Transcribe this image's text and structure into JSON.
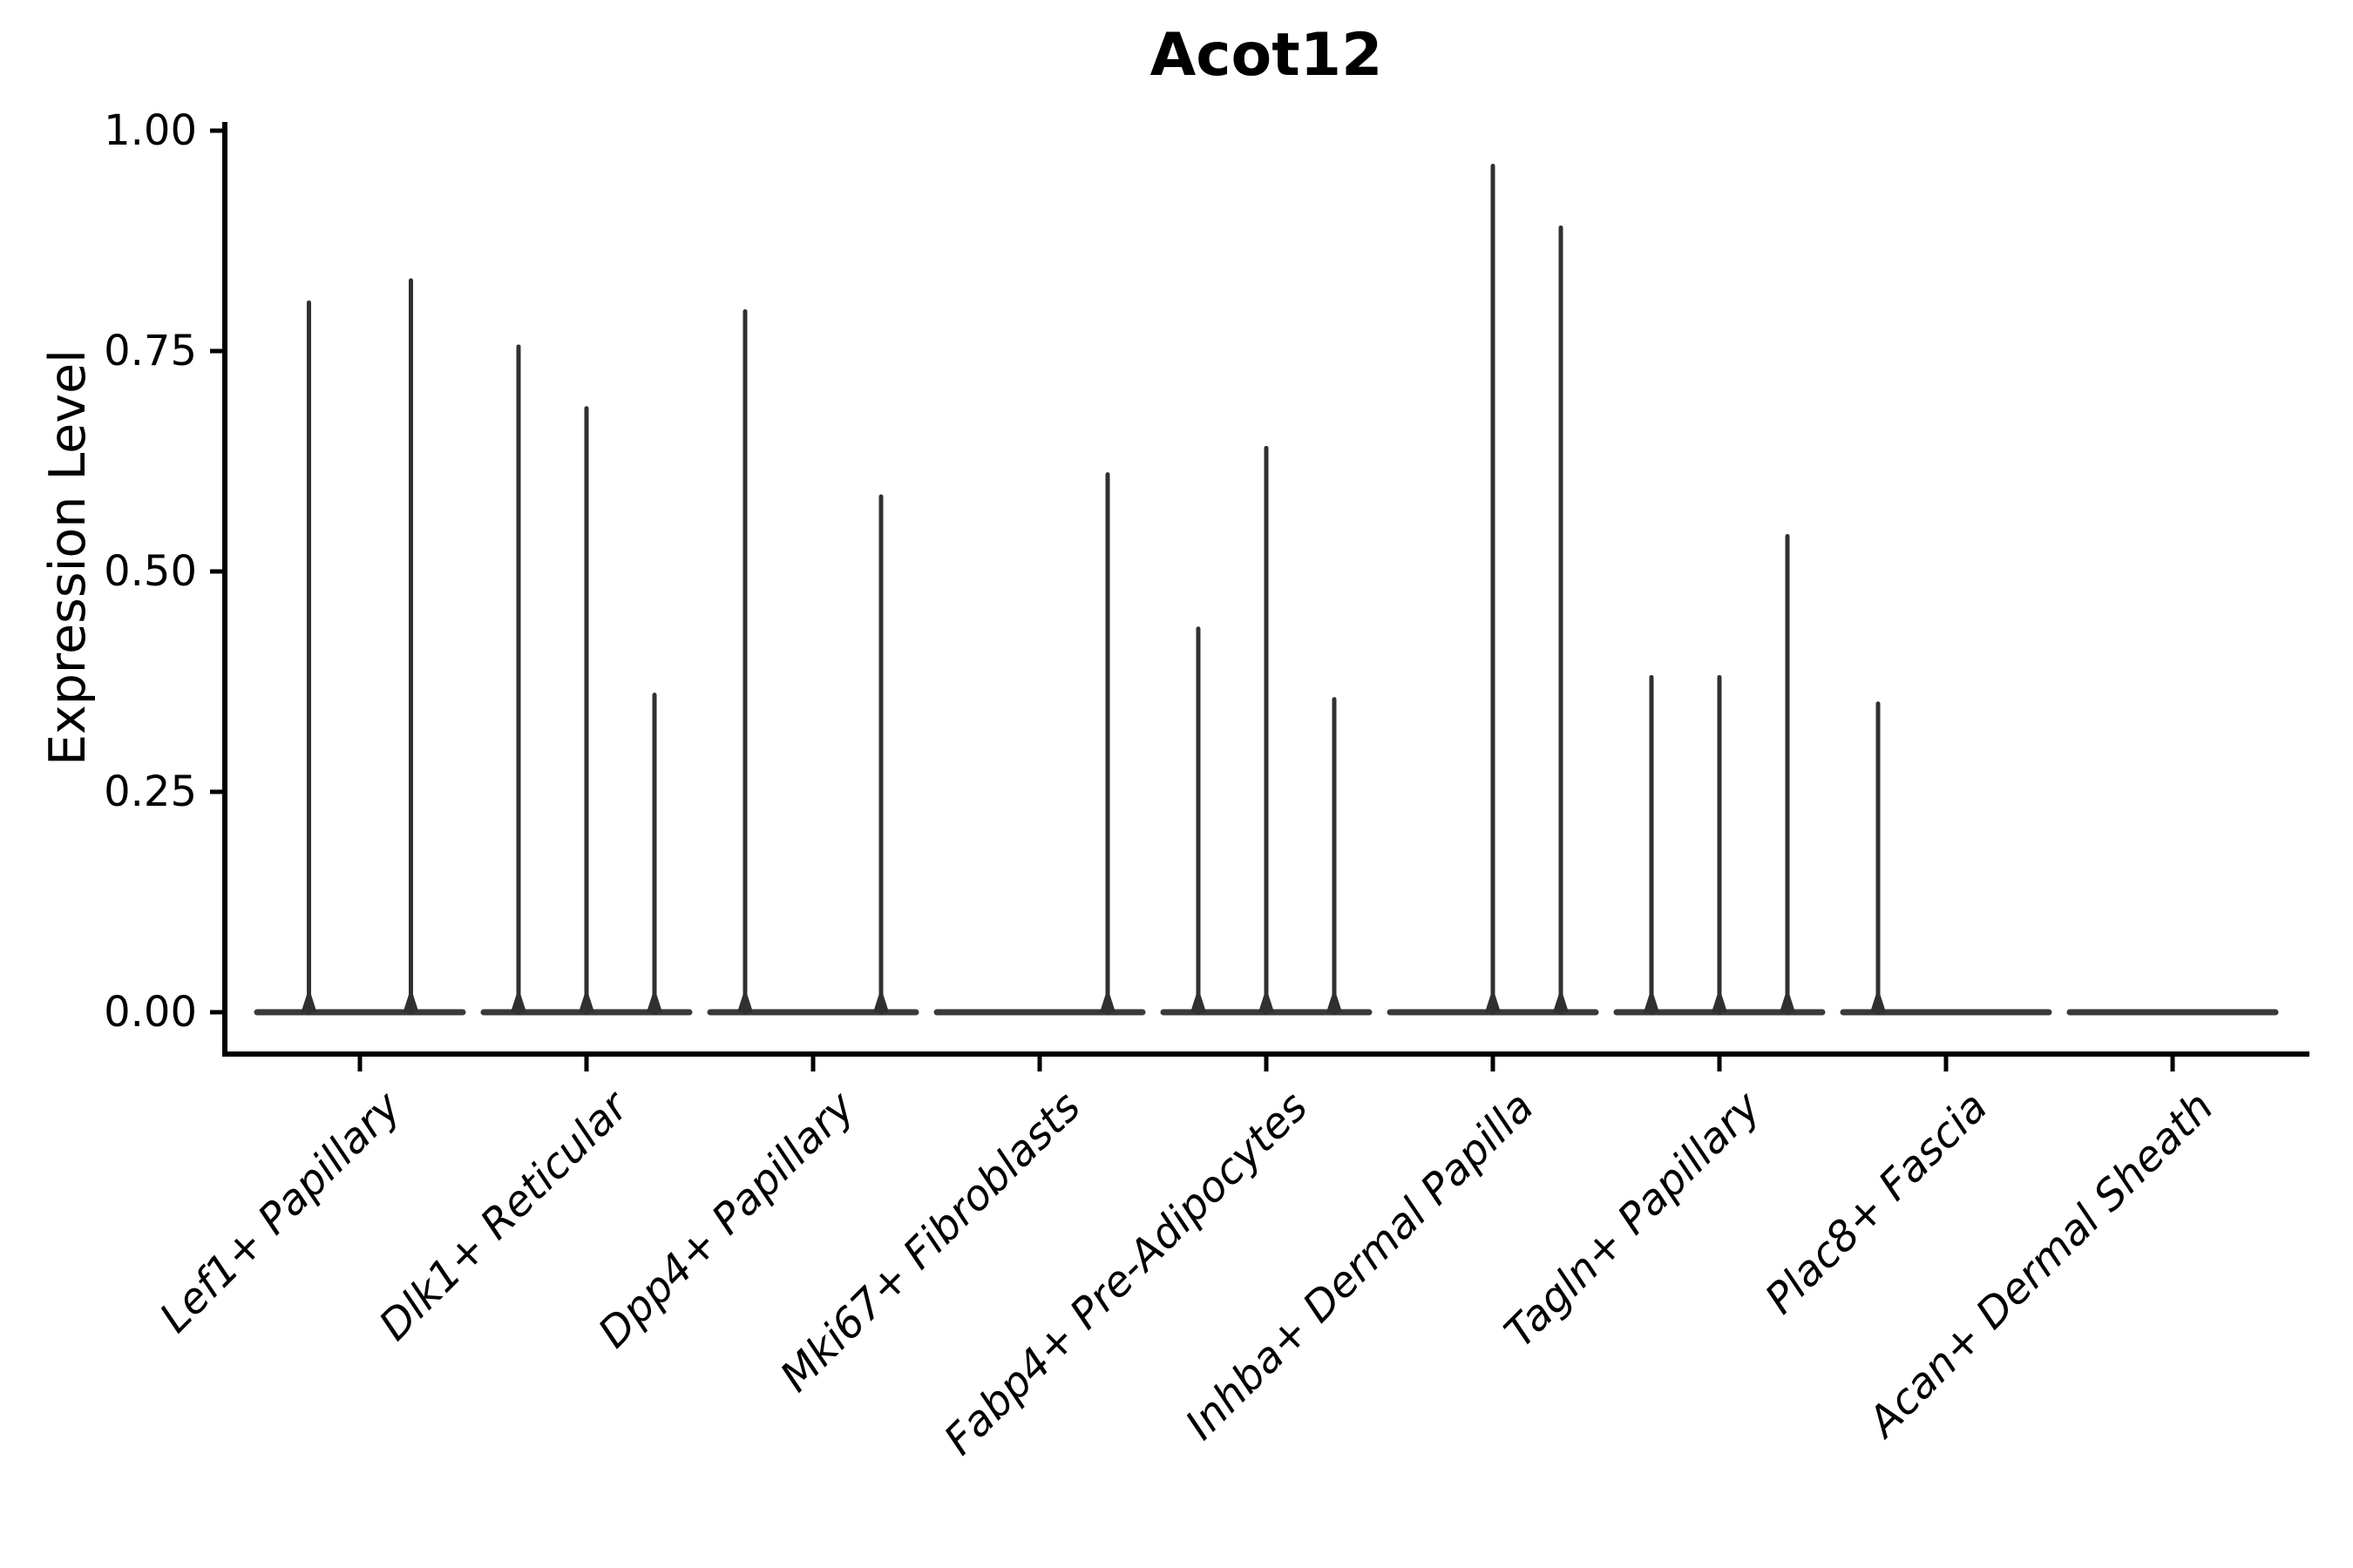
{
  "figure": {
    "title": "Acot12",
    "background_color": "#ffffff"
  },
  "chart_data": {
    "type": "violin",
    "title": "Acot12",
    "ylabel": "Expression Level",
    "xlabel": "",
    "ylim": [
      0,
      1.0
    ],
    "grid": false,
    "legend_position": "none",
    "y_ticks": {
      "values": [
        1.0,
        0.75,
        0.5,
        0.25,
        0.0
      ],
      "labels": [
        "1.00",
        "0.75",
        "0.50",
        "0.25",
        "0.00"
      ]
    },
    "categories": [
      "Lef1+ Papillary",
      "Dlk1+ Reticular",
      "Dpp4+ Papillary",
      "Mki67+ Fibroblasts",
      "Fabp4+ Pre-Adipocytes",
      "Inhba+ Dermal Papilla",
      "Tagln+ Papillary",
      "Plac8+ Fascia",
      "Acan+ Dermal Sheath"
    ],
    "groups": [
      {
        "category": "Lef1+ Papillary",
        "violins": [
          {
            "position": -0.225,
            "peak_expression": 0.805
          },
          {
            "position": 0.225,
            "peak_expression": 0.83
          }
        ]
      },
      {
        "category": "Dlk1+ Reticular",
        "violins": [
          {
            "position": -0.3,
            "peak_expression": 0.755
          },
          {
            "position": 0.0,
            "peak_expression": 0.685
          },
          {
            "position": 0.3,
            "peak_expression": 0.36
          }
        ]
      },
      {
        "category": "Dpp4+ Papillary",
        "violins": [
          {
            "position": -0.3,
            "peak_expression": 0.795
          },
          {
            "position": 0.0,
            "peak_expression": 0.0
          },
          {
            "position": 0.3,
            "peak_expression": 0.585
          }
        ]
      },
      {
        "category": "Mki67+ Fibroblasts",
        "violins": [
          {
            "position": -0.3,
            "peak_expression": 0.0
          },
          {
            "position": 0.0,
            "peak_expression": 0.0
          },
          {
            "position": 0.3,
            "peak_expression": 0.61
          }
        ]
      },
      {
        "category": "Fabp4+ Pre-Adipocytes",
        "violins": [
          {
            "position": -0.3,
            "peak_expression": 0.435
          },
          {
            "position": 0.0,
            "peak_expression": 0.64
          },
          {
            "position": 0.3,
            "peak_expression": 0.355
          }
        ]
      },
      {
        "category": "Inhba+ Dermal Papilla",
        "violins": [
          {
            "position": -0.3,
            "peak_expression": 0.0
          },
          {
            "position": 0.0,
            "peak_expression": 0.96
          },
          {
            "position": 0.3,
            "peak_expression": 0.89
          }
        ]
      },
      {
        "category": "Tagln+ Papillary",
        "violins": [
          {
            "position": -0.3,
            "peak_expression": 0.38
          },
          {
            "position": 0.0,
            "peak_expression": 0.38
          },
          {
            "position": 0.3,
            "peak_expression": 0.54
          }
        ]
      },
      {
        "category": "Plac8+ Fascia",
        "violins": [
          {
            "position": -0.3,
            "peak_expression": 0.35
          },
          {
            "position": 0.0,
            "peak_expression": 0.0
          },
          {
            "position": 0.3,
            "peak_expression": 0.0
          }
        ]
      },
      {
        "category": "Acan+ Dermal Sheath",
        "violins": [
          {
            "position": -0.3,
            "peak_expression": 0.0
          },
          {
            "position": 0.0,
            "peak_expression": 0.0
          },
          {
            "position": 0.3,
            "peak_expression": 0.0
          }
        ]
      }
    ],
    "colors": {
      "violin": "#303030",
      "baseline": "#3a3a3a",
      "axis": "#000000",
      "text": "#000000",
      "background": "#ffffff"
    }
  }
}
